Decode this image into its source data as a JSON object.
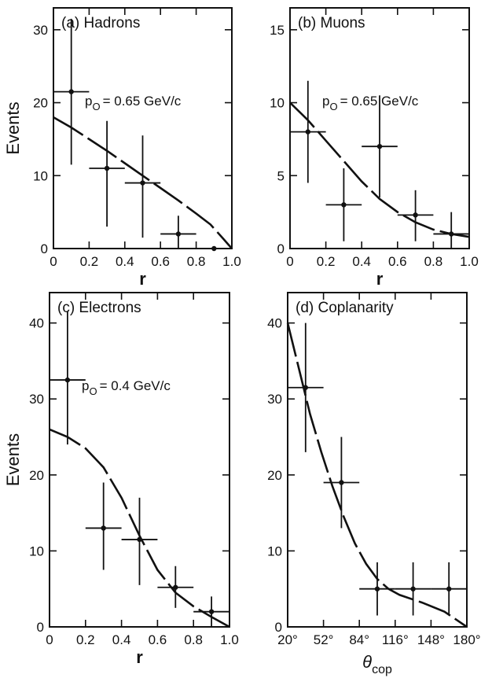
{
  "chart_data": [
    {
      "id": "a",
      "type": "scatter",
      "title": "(a) Hadrons",
      "annotation": "p_O = 0.65 GeV/c",
      "annotation_main": "p",
      "annotation_sub": "O",
      "annotation_rest": "= 0.65 GeV/c",
      "xlabel": "r",
      "ylabel": "Events",
      "xlim": [
        0,
        1.0
      ],
      "ylim": [
        0,
        33
      ],
      "xticks": [
        0,
        0.2,
        0.4,
        0.6,
        0.8,
        1.0
      ],
      "xtick_labels": [
        "0",
        "0.2",
        "0.4",
        "0.6",
        "0.8",
        "1.0"
      ],
      "yticks": [
        0,
        10,
        20,
        30
      ],
      "ytick_labels": [
        "0",
        "10",
        "20",
        "30"
      ],
      "points": [
        {
          "x": 0.1,
          "y": 21.5,
          "xerr": 0.1,
          "ylo": 11.5,
          "yhi": 31.5
        },
        {
          "x": 0.3,
          "y": 11,
          "xerr": 0.1,
          "ylo": 3,
          "yhi": 17.5
        },
        {
          "x": 0.5,
          "y": 9,
          "xerr": 0.1,
          "ylo": 1.5,
          "yhi": 15.5
        },
        {
          "x": 0.7,
          "y": 2,
          "xerr": 0.1,
          "ylo": 0,
          "yhi": 4.5
        },
        {
          "x": 0.9,
          "y": 0,
          "xerr": 0.1,
          "ylo": 0,
          "yhi": 0
        }
      ],
      "curve": {
        "x": [
          0,
          0.1,
          0.2,
          0.3,
          0.4,
          0.5,
          0.6,
          0.7,
          0.8,
          0.88,
          0.95,
          1.0
        ],
        "y": [
          18,
          16.6,
          15,
          13.4,
          11.7,
          10,
          8.3,
          6.6,
          4.8,
          3.3,
          1.4,
          0
        ]
      }
    },
    {
      "id": "b",
      "type": "scatter",
      "title": "(b) Muons",
      "annotation": "p_O = 0.65 GeV/c",
      "annotation_main": "p",
      "annotation_sub": "O",
      "annotation_rest": "= 0.65 GeV/c",
      "xlabel": "r",
      "ylabel": "",
      "xlim": [
        0,
        1.0
      ],
      "ylim": [
        0,
        16.5
      ],
      "xticks": [
        0,
        0.2,
        0.4,
        0.6,
        0.8,
        1.0
      ],
      "xtick_labels": [
        "0",
        "0.2",
        "0.4",
        "0.6",
        "0.8",
        "1.0"
      ],
      "yticks": [
        0,
        5,
        10,
        15
      ],
      "ytick_labels": [
        "0",
        "5",
        "10",
        "15"
      ],
      "points": [
        {
          "x": 0.1,
          "y": 8,
          "xerr": 0.1,
          "ylo": 4.5,
          "yhi": 11.5
        },
        {
          "x": 0.3,
          "y": 3,
          "xerr": 0.1,
          "ylo": 0.5,
          "yhi": 5.5
        },
        {
          "x": 0.5,
          "y": 7,
          "xerr": 0.1,
          "ylo": 3.5,
          "yhi": 10.5
        },
        {
          "x": 0.7,
          "y": 2.3,
          "xerr": 0.1,
          "ylo": 0.5,
          "yhi": 4
        },
        {
          "x": 0.9,
          "y": 1,
          "xerr": 0.1,
          "ylo": 0,
          "yhi": 2.5
        }
      ],
      "curve": {
        "x": [
          0,
          0.1,
          0.2,
          0.3,
          0.4,
          0.5,
          0.6,
          0.7,
          0.8,
          0.9,
          1.0
        ],
        "y": [
          10,
          8.8,
          7.4,
          6.0,
          4.6,
          3.4,
          2.5,
          1.8,
          1.3,
          1.0,
          0.8
        ]
      }
    },
    {
      "id": "c",
      "type": "scatter",
      "title": "(c) Electrons",
      "annotation": "p_O = 0.4 GeV/c",
      "annotation_main": "p",
      "annotation_sub": "O",
      "annotation_rest": "= 0.4 GeV/c",
      "xlabel": "r",
      "ylabel": "Events",
      "xlim": [
        0,
        1.0
      ],
      "ylim": [
        0,
        44
      ],
      "xticks": [
        0,
        0.2,
        0.4,
        0.6,
        0.8,
        1.0
      ],
      "xtick_labels": [
        "0",
        "0.2",
        "0.4",
        "0.6",
        "0.8",
        "1.0"
      ],
      "yticks": [
        0,
        10,
        20,
        30,
        40
      ],
      "ytick_labels": [
        "0",
        "10",
        "20",
        "30",
        "40"
      ],
      "points": [
        {
          "x": 0.1,
          "y": 32.5,
          "xerr": 0.1,
          "ylo": 24,
          "yhi": 41.5
        },
        {
          "x": 0.3,
          "y": 13,
          "xerr": 0.1,
          "ylo": 7.5,
          "yhi": 19
        },
        {
          "x": 0.5,
          "y": 11.5,
          "xerr": 0.1,
          "ylo": 5.5,
          "yhi": 17
        },
        {
          "x": 0.7,
          "y": 5.2,
          "xerr": 0.1,
          "ylo": 2.5,
          "yhi": 8
        },
        {
          "x": 0.9,
          "y": 2,
          "xerr": 0.1,
          "ylo": 0,
          "yhi": 4
        }
      ],
      "curve": {
        "x": [
          0,
          0.1,
          0.2,
          0.3,
          0.4,
          0.5,
          0.6,
          0.7,
          0.8,
          0.9,
          1.0
        ],
        "y": [
          26,
          25,
          23.5,
          21,
          17,
          12,
          7.5,
          4.5,
          2.7,
          1.3,
          0
        ]
      }
    },
    {
      "id": "d",
      "type": "scatter",
      "title": "(d) Coplanarity",
      "annotation": "",
      "xlabel": "θcop",
      "xlabel_main": "θ",
      "xlabel_sub": "cop",
      "ylabel": "",
      "xlim": [
        20,
        180
      ],
      "ylim": [
        0,
        44
      ],
      "xticks": [
        20,
        52,
        84,
        116,
        148,
        180
      ],
      "xtick_labels": [
        "20°",
        "52°",
        "84°",
        "116°",
        "148°",
        "180°"
      ],
      "yticks": [
        0,
        10,
        20,
        30,
        40
      ],
      "ytick_labels": [
        "0",
        "10",
        "20",
        "30",
        "40"
      ],
      "points": [
        {
          "x": 36,
          "y": 31.5,
          "xerr": 16,
          "ylo": 23,
          "yhi": 40
        },
        {
          "x": 68,
          "y": 19,
          "xerr": 16,
          "ylo": 13,
          "yhi": 25
        },
        {
          "x": 100,
          "y": 5,
          "xerr": 16,
          "ylo": 1.5,
          "yhi": 8.5
        },
        {
          "x": 132,
          "y": 5,
          "xerr": 16,
          "ylo": 1.5,
          "yhi": 8.5
        },
        {
          "x": 164,
          "y": 5,
          "xerr": 16,
          "ylo": 1.5,
          "yhi": 8.5
        }
      ],
      "curve": {
        "x": [
          20,
          30,
          40,
          50,
          60,
          70,
          80,
          90,
          100,
          110,
          120,
          140,
          160,
          170,
          180
        ],
        "y": [
          40,
          34,
          28,
          23,
          18.5,
          14.5,
          11,
          8.3,
          6.3,
          5.0,
          4.2,
          3.2,
          2.0,
          1.0,
          0
        ]
      }
    }
  ]
}
